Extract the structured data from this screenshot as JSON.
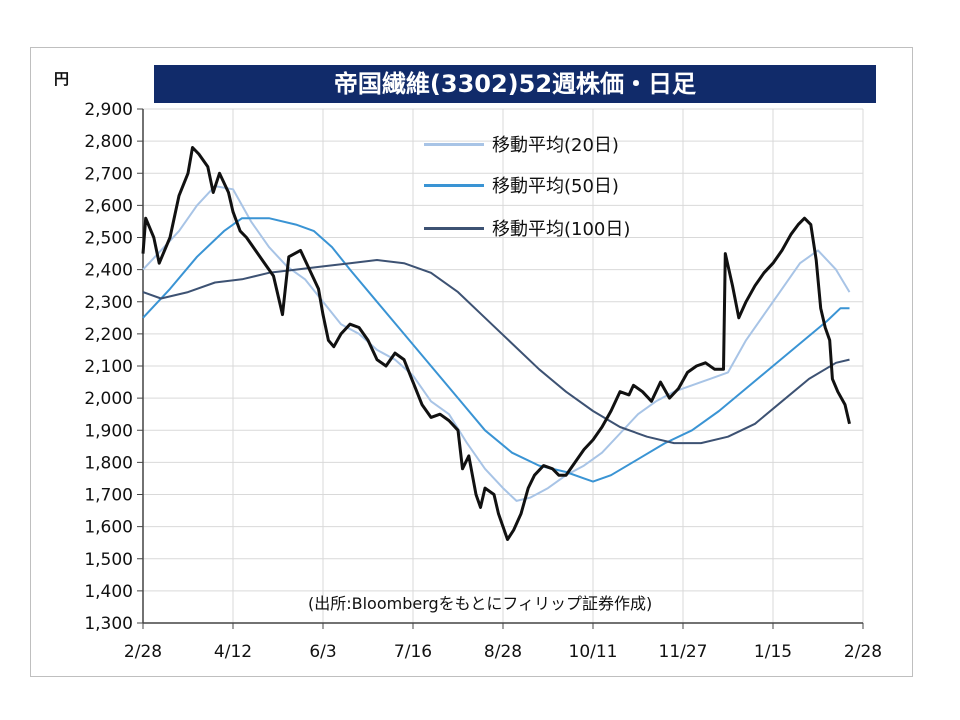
{
  "chart_data": {
    "type": "line",
    "title": "帝国繊維(3302)52週株価・日足",
    "unit_label": "円",
    "ylim": [
      1300,
      2900
    ],
    "y_ticks": [
      "2,900",
      "2,800",
      "2,700",
      "2,600",
      "2,500",
      "2,400",
      "2,300",
      "2,200",
      "2,100",
      "2,000",
      "1,900",
      "1,800",
      "1,700",
      "1,600",
      "1,500",
      "1,400",
      "1,300"
    ],
    "x_ticks": [
      "2/28",
      "4/12",
      "6/3",
      "7/16",
      "8/28",
      "10/11",
      "11/27",
      "1/15",
      "2/28"
    ],
    "grid": true,
    "legend_position": "top-right",
    "source_note": "(出所:Bloombergをもとにフィリップ証券作成)",
    "series": [
      {
        "name": "",
        "role": "price",
        "color": "#111111",
        "points": [
          [
            0,
            2450
          ],
          [
            0.03,
            2560
          ],
          [
            0.12,
            2500
          ],
          [
            0.18,
            2420
          ],
          [
            0.3,
            2500
          ],
          [
            0.4,
            2630
          ],
          [
            0.5,
            2700
          ],
          [
            0.55,
            2780
          ],
          [
            0.62,
            2760
          ],
          [
            0.72,
            2720
          ],
          [
            0.78,
            2640
          ],
          [
            0.85,
            2700
          ],
          [
            0.95,
            2640
          ],
          [
            1.0,
            2580
          ],
          [
            1.08,
            2520
          ],
          [
            1.15,
            2500
          ],
          [
            1.25,
            2460
          ],
          [
            1.35,
            2420
          ],
          [
            1.45,
            2380
          ],
          [
            1.55,
            2260
          ],
          [
            1.62,
            2440
          ],
          [
            1.75,
            2460
          ],
          [
            1.85,
            2400
          ],
          [
            1.95,
            2340
          ],
          [
            2.0,
            2260
          ],
          [
            2.06,
            2180
          ],
          [
            2.12,
            2160
          ],
          [
            2.2,
            2200
          ],
          [
            2.3,
            2230
          ],
          [
            2.4,
            2220
          ],
          [
            2.5,
            2180
          ],
          [
            2.6,
            2120
          ],
          [
            2.7,
            2100
          ],
          [
            2.8,
            2140
          ],
          [
            2.9,
            2120
          ],
          [
            3.0,
            2050
          ],
          [
            3.1,
            1980
          ],
          [
            3.2,
            1940
          ],
          [
            3.3,
            1950
          ],
          [
            3.4,
            1930
          ],
          [
            3.5,
            1900
          ],
          [
            3.55,
            1780
          ],
          [
            3.62,
            1820
          ],
          [
            3.7,
            1700
          ],
          [
            3.75,
            1660
          ],
          [
            3.8,
            1720
          ],
          [
            3.9,
            1700
          ],
          [
            3.95,
            1640
          ],
          [
            4.0,
            1600
          ],
          [
            4.05,
            1560
          ],
          [
            4.12,
            1590
          ],
          [
            4.2,
            1640
          ],
          [
            4.28,
            1720
          ],
          [
            4.35,
            1760
          ],
          [
            4.45,
            1790
          ],
          [
            4.55,
            1780
          ],
          [
            4.62,
            1760
          ],
          [
            4.7,
            1760
          ],
          [
            4.8,
            1800
          ],
          [
            4.9,
            1840
          ],
          [
            5.0,
            1870
          ],
          [
            5.1,
            1910
          ],
          [
            5.2,
            1960
          ],
          [
            5.3,
            2020
          ],
          [
            5.4,
            2010
          ],
          [
            5.45,
            2040
          ],
          [
            5.55,
            2020
          ],
          [
            5.65,
            1990
          ],
          [
            5.75,
            2050
          ],
          [
            5.85,
            2000
          ],
          [
            5.95,
            2030
          ],
          [
            6.05,
            2080
          ],
          [
            6.15,
            2100
          ],
          [
            6.25,
            2110
          ],
          [
            6.35,
            2090
          ],
          [
            6.45,
            2090
          ],
          [
            6.47,
            2450
          ],
          [
            6.55,
            2350
          ],
          [
            6.62,
            2250
          ],
          [
            6.7,
            2300
          ],
          [
            6.8,
            2350
          ],
          [
            6.9,
            2390
          ],
          [
            7.0,
            2420
          ],
          [
            7.1,
            2460
          ],
          [
            7.2,
            2510
          ],
          [
            7.28,
            2540
          ],
          [
            7.35,
            2560
          ],
          [
            7.42,
            2540
          ],
          [
            7.48,
            2430
          ],
          [
            7.53,
            2280
          ],
          [
            7.58,
            2220
          ],
          [
            7.63,
            2180
          ],
          [
            7.66,
            2060
          ],
          [
            7.72,
            2020
          ],
          [
            7.8,
            1980
          ],
          [
            7.85,
            1920
          ]
        ]
      },
      {
        "name": "移動平均(20日)",
        "color": "#a8c4e6",
        "points": [
          [
            0,
            2400
          ],
          [
            0.2,
            2460
          ],
          [
            0.4,
            2520
          ],
          [
            0.6,
            2600
          ],
          [
            0.8,
            2660
          ],
          [
            1.0,
            2650
          ],
          [
            1.2,
            2550
          ],
          [
            1.4,
            2470
          ],
          [
            1.6,
            2410
          ],
          [
            1.8,
            2370
          ],
          [
            2.0,
            2300
          ],
          [
            2.2,
            2230
          ],
          [
            2.4,
            2200
          ],
          [
            2.6,
            2150
          ],
          [
            2.8,
            2120
          ],
          [
            3.0,
            2070
          ],
          [
            3.2,
            1990
          ],
          [
            3.4,
            1950
          ],
          [
            3.6,
            1860
          ],
          [
            3.8,
            1780
          ],
          [
            4.0,
            1720
          ],
          [
            4.15,
            1680
          ],
          [
            4.3,
            1690
          ],
          [
            4.5,
            1720
          ],
          [
            4.7,
            1760
          ],
          [
            4.9,
            1790
          ],
          [
            5.1,
            1830
          ],
          [
            5.3,
            1890
          ],
          [
            5.5,
            1950
          ],
          [
            5.7,
            1990
          ],
          [
            5.9,
            2020
          ],
          [
            6.1,
            2040
          ],
          [
            6.3,
            2060
          ],
          [
            6.5,
            2080
          ],
          [
            6.7,
            2180
          ],
          [
            6.9,
            2260
          ],
          [
            7.1,
            2340
          ],
          [
            7.3,
            2420
          ],
          [
            7.5,
            2460
          ],
          [
            7.7,
            2400
          ],
          [
            7.85,
            2330
          ]
        ]
      },
      {
        "name": "移動平均(50日)",
        "color": "#3a94d4",
        "points": [
          [
            0,
            2250
          ],
          [
            0.3,
            2340
          ],
          [
            0.6,
            2440
          ],
          [
            0.9,
            2520
          ],
          [
            1.1,
            2560
          ],
          [
            1.4,
            2560
          ],
          [
            1.7,
            2540
          ],
          [
            1.9,
            2520
          ],
          [
            2.1,
            2470
          ],
          [
            2.3,
            2400
          ],
          [
            2.6,
            2300
          ],
          [
            2.9,
            2200
          ],
          [
            3.2,
            2100
          ],
          [
            3.5,
            2000
          ],
          [
            3.8,
            1900
          ],
          [
            4.1,
            1830
          ],
          [
            4.4,
            1790
          ],
          [
            4.7,
            1770
          ],
          [
            4.9,
            1750
          ],
          [
            5.0,
            1740
          ],
          [
            5.2,
            1760
          ],
          [
            5.5,
            1810
          ],
          [
            5.8,
            1860
          ],
          [
            6.1,
            1900
          ],
          [
            6.4,
            1960
          ],
          [
            6.7,
            2030
          ],
          [
            7.0,
            2100
          ],
          [
            7.3,
            2170
          ],
          [
            7.6,
            2240
          ],
          [
            7.75,
            2280
          ],
          [
            7.85,
            2280
          ]
        ]
      },
      {
        "name": "移動平均(100日)",
        "color": "#3d5273",
        "points": [
          [
            0,
            2330
          ],
          [
            0.2,
            2310
          ],
          [
            0.5,
            2330
          ],
          [
            0.8,
            2360
          ],
          [
            1.1,
            2370
          ],
          [
            1.4,
            2390
          ],
          [
            1.7,
            2400
          ],
          [
            2.0,
            2410
          ],
          [
            2.3,
            2420
          ],
          [
            2.6,
            2430
          ],
          [
            2.9,
            2420
          ],
          [
            3.2,
            2390
          ],
          [
            3.5,
            2330
          ],
          [
            3.8,
            2250
          ],
          [
            4.1,
            2170
          ],
          [
            4.4,
            2090
          ],
          [
            4.7,
            2020
          ],
          [
            5.0,
            1960
          ],
          [
            5.3,
            1910
          ],
          [
            5.6,
            1880
          ],
          [
            5.9,
            1860
          ],
          [
            6.2,
            1860
          ],
          [
            6.5,
            1880
          ],
          [
            6.8,
            1920
          ],
          [
            7.1,
            1990
          ],
          [
            7.4,
            2060
          ],
          [
            7.7,
            2110
          ],
          [
            7.85,
            2120
          ]
        ]
      }
    ]
  }
}
